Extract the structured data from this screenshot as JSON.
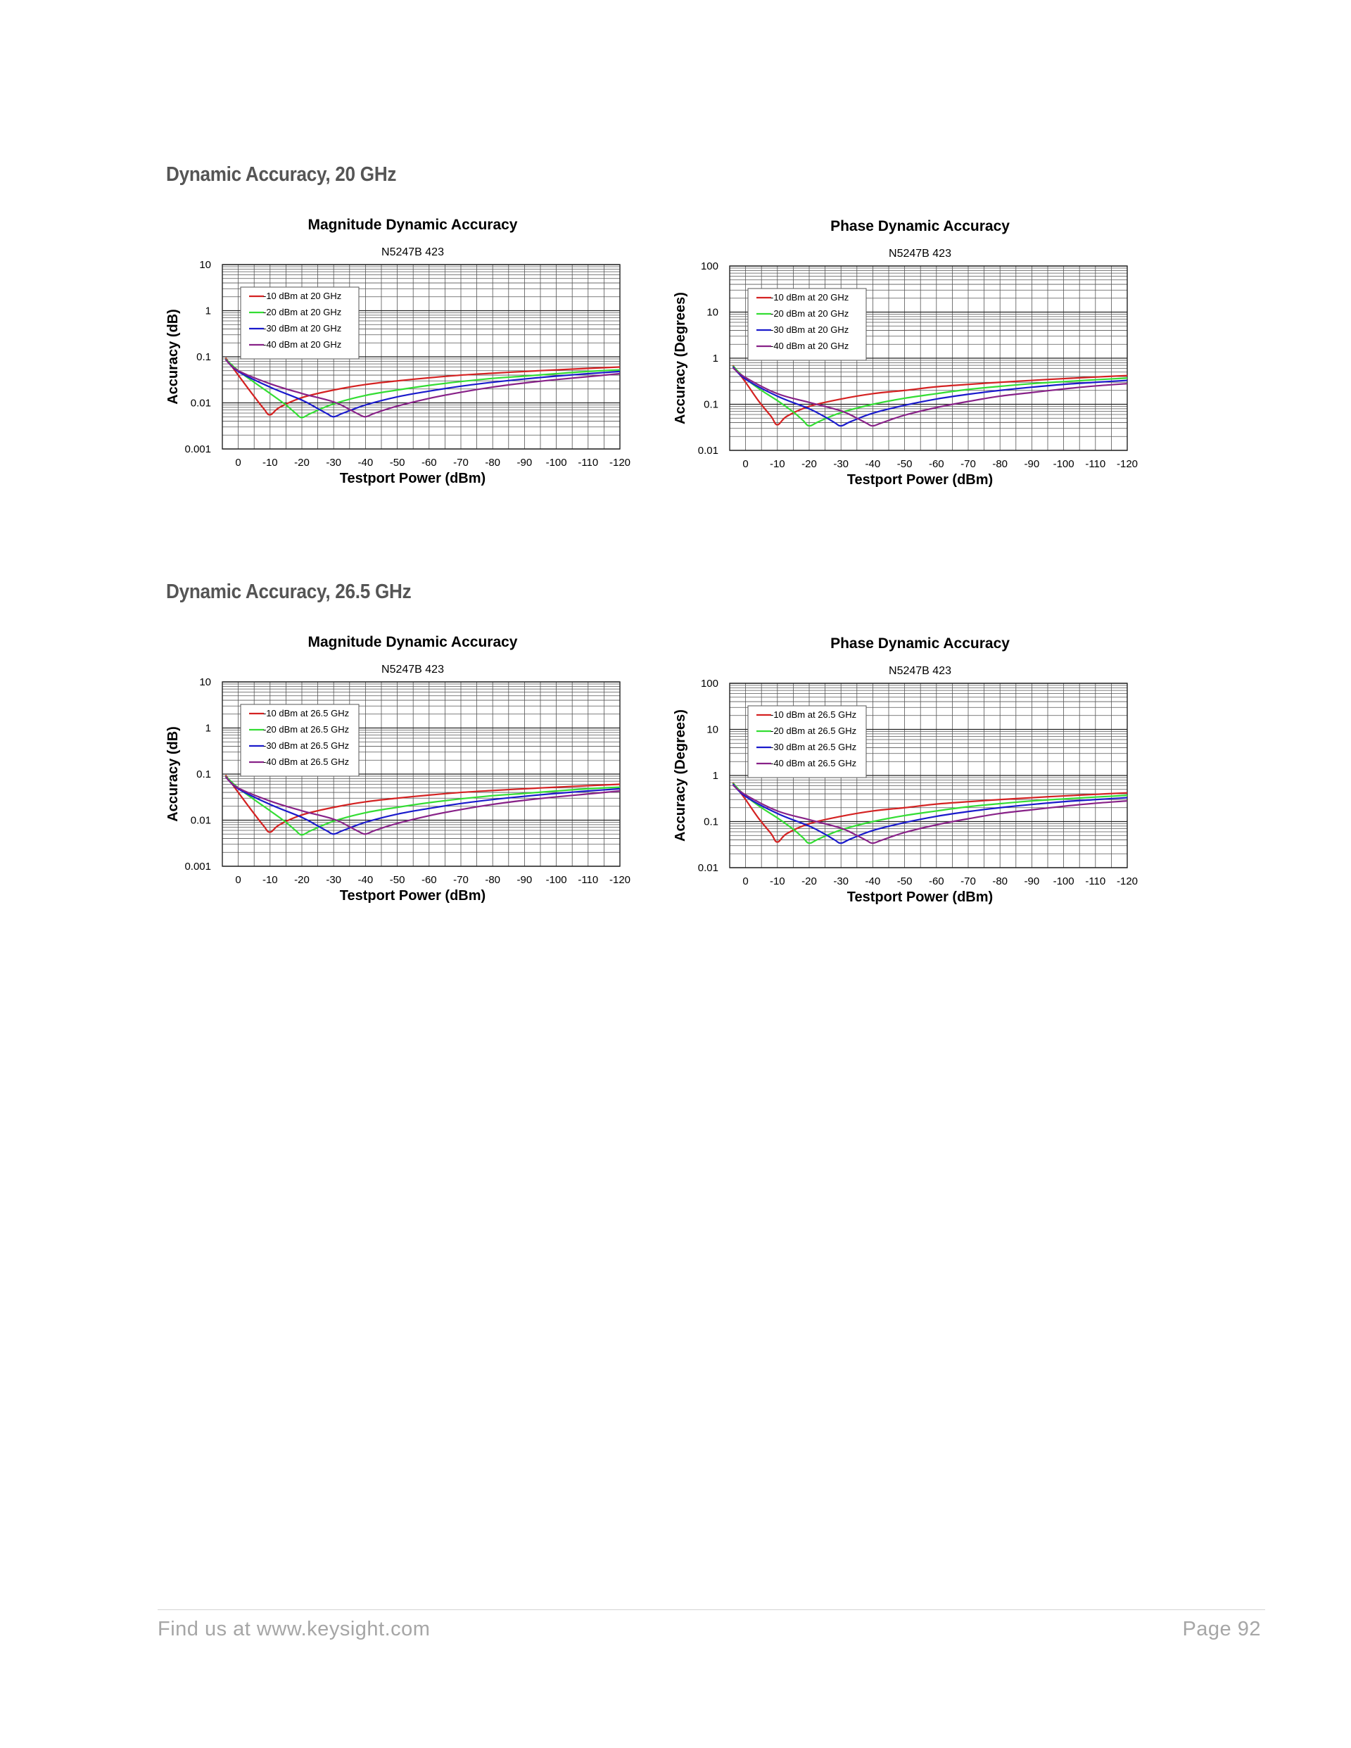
{
  "sections": [
    {
      "title": "Dynamic Accuracy, 20 GHz"
    },
    {
      "title": "Dynamic Accuracy, 26.5 GHz"
    }
  ],
  "footer": {
    "website": "Find us at www.keysight.com",
    "page": "Page 92"
  },
  "chart_data": [
    {
      "type": "line",
      "title": "Magnitude Dynamic Accuracy",
      "subtitle": "N5247B 423",
      "xlabel": "Testport Power (dBm)",
      "ylabel": "Accuracy (dB)",
      "xlim": [
        5,
        -120
      ],
      "ylim": [
        0.001,
        10
      ],
      "yscale": "log",
      "xticks": [
        0,
        -10,
        -20,
        -30,
        -40,
        -50,
        -60,
        -70,
        -80,
        -90,
        -100,
        -110,
        -120
      ],
      "yticks": [
        0.001,
        0.01,
        0.1,
        1,
        10
      ],
      "ytick_labels": [
        "0.001",
        "0.01",
        "0.1",
        "1",
        "10"
      ],
      "grid": true,
      "legend_position": "top-left",
      "series": [
        {
          "name": "-10 dBm at 20 GHz",
          "color": "#d42222",
          "x": [
            4,
            0,
            -4,
            -8,
            -10,
            -13,
            -20,
            -30,
            -40,
            -50,
            -60,
            -70,
            -80,
            -90,
            -100,
            -110,
            -120
          ],
          "y": [
            0.095,
            0.04,
            0.017,
            0.0075,
            0.0055,
            0.008,
            0.013,
            0.019,
            0.025,
            0.03,
            0.035,
            0.04,
            0.044,
            0.048,
            0.052,
            0.056,
            0.06
          ]
        },
        {
          "name": "-20 dBm at 20 GHz",
          "color": "#33dd33",
          "x": [
            4,
            0,
            -5,
            -10,
            -15,
            -18,
            -20,
            -23,
            -30,
            -40,
            -50,
            -60,
            -70,
            -80,
            -90,
            -100,
            -110,
            -120
          ],
          "y": [
            0.09,
            0.05,
            0.028,
            0.016,
            0.009,
            0.006,
            0.0048,
            0.006,
            0.0095,
            0.0145,
            0.019,
            0.024,
            0.029,
            0.034,
            0.038,
            0.043,
            0.048,
            0.052
          ]
        },
        {
          "name": "-30 dBm at 20 GHz",
          "color": "#1a1acc",
          "x": [
            4,
            0,
            -10,
            -20,
            -25,
            -28,
            -30,
            -33,
            -40,
            -50,
            -60,
            -70,
            -80,
            -90,
            -100,
            -110,
            -120
          ],
          "y": [
            0.088,
            0.048,
            0.022,
            0.0115,
            0.0075,
            0.0058,
            0.005,
            0.006,
            0.009,
            0.0135,
            0.018,
            0.023,
            0.028,
            0.033,
            0.038,
            0.043,
            0.048
          ]
        },
        {
          "name": "-40 dBm at 20 GHz",
          "color": "#882288",
          "x": [
            4,
            0,
            -10,
            -20,
            -30,
            -35,
            -38,
            -40,
            -43,
            -50,
            -60,
            -70,
            -80,
            -90,
            -100,
            -110,
            -120
          ],
          "y": [
            0.087,
            0.05,
            0.026,
            0.016,
            0.0105,
            0.0072,
            0.0056,
            0.005,
            0.006,
            0.0085,
            0.0125,
            0.017,
            0.022,
            0.027,
            0.032,
            0.037,
            0.043
          ]
        }
      ]
    },
    {
      "type": "line",
      "title": "Phase Dynamic Accuracy",
      "subtitle": "N5247B 423",
      "xlabel": "Testport Power (dBm)",
      "ylabel": "Accuracy (Degrees)",
      "xlim": [
        5,
        -120
      ],
      "ylim": [
        0.01,
        100
      ],
      "yscale": "log",
      "xticks": [
        0,
        -10,
        -20,
        -30,
        -40,
        -50,
        -60,
        -70,
        -80,
        -90,
        -100,
        -110,
        -120
      ],
      "yticks": [
        0.01,
        0.1,
        1,
        10,
        100
      ],
      "ytick_labels": [
        "0.01",
        "0.1",
        "1",
        "10",
        "100"
      ],
      "grid": true,
      "legend_position": "top-left",
      "series": [
        {
          "name": "-10 dBm at 20 GHz",
          "color": "#d42222",
          "x": [
            4,
            0,
            -4,
            -8,
            -10,
            -13,
            -20,
            -30,
            -40,
            -50,
            -60,
            -70,
            -80,
            -90,
            -100,
            -110,
            -120
          ],
          "y": [
            0.7,
            0.3,
            0.12,
            0.055,
            0.036,
            0.055,
            0.09,
            0.13,
            0.17,
            0.2,
            0.24,
            0.27,
            0.3,
            0.33,
            0.36,
            0.39,
            0.42
          ]
        },
        {
          "name": "-20 dBm at 20 GHz",
          "color": "#33dd33",
          "x": [
            4,
            0,
            -5,
            -10,
            -15,
            -18,
            -20,
            -23,
            -30,
            -40,
            -50,
            -60,
            -70,
            -80,
            -90,
            -100,
            -110,
            -120
          ],
          "y": [
            0.68,
            0.36,
            0.2,
            0.12,
            0.068,
            0.045,
            0.034,
            0.042,
            0.066,
            0.1,
            0.135,
            0.17,
            0.21,
            0.245,
            0.28,
            0.31,
            0.34,
            0.37
          ]
        },
        {
          "name": "-30 dBm at 20 GHz",
          "color": "#1a1acc",
          "x": [
            4,
            0,
            -10,
            -20,
            -25,
            -28,
            -30,
            -33,
            -40,
            -50,
            -60,
            -70,
            -80,
            -90,
            -100,
            -110,
            -120
          ],
          "y": [
            0.65,
            0.35,
            0.15,
            0.08,
            0.053,
            0.04,
            0.034,
            0.042,
            0.064,
            0.095,
            0.13,
            0.165,
            0.2,
            0.235,
            0.27,
            0.3,
            0.33
          ]
        },
        {
          "name": "-40 dBm at 20 GHz",
          "color": "#882288",
          "x": [
            4,
            0,
            -10,
            -20,
            -30,
            -35,
            -38,
            -40,
            -43,
            -50,
            -60,
            -70,
            -80,
            -90,
            -100,
            -110,
            -120
          ],
          "y": [
            0.62,
            0.38,
            0.17,
            0.11,
            0.072,
            0.05,
            0.039,
            0.034,
            0.04,
            0.058,
            0.085,
            0.115,
            0.15,
            0.18,
            0.215,
            0.25,
            0.28
          ]
        }
      ]
    },
    {
      "type": "line",
      "title": "Magnitude Dynamic Accuracy",
      "subtitle": "N5247B 423",
      "xlabel": "Testport Power (dBm)",
      "ylabel": "Accuracy (dB)",
      "xlim": [
        5,
        -120
      ],
      "ylim": [
        0.001,
        10
      ],
      "yscale": "log",
      "xticks": [
        0,
        -10,
        -20,
        -30,
        -40,
        -50,
        -60,
        -70,
        -80,
        -90,
        -100,
        -110,
        -120
      ],
      "yticks": [
        0.001,
        0.01,
        0.1,
        1,
        10
      ],
      "ytick_labels": [
        "0.001",
        "0.01",
        "0.1",
        "1",
        "10"
      ],
      "grid": true,
      "legend_position": "top-left",
      "series": [
        {
          "name": "-10 dBm at 26.5 GHz",
          "color": "#d42222",
          "x": [
            4,
            0,
            -4,
            -8,
            -10,
            -13,
            -20,
            -30,
            -40,
            -50,
            -60,
            -70,
            -80,
            -90,
            -100,
            -110,
            -120
          ],
          "y": [
            0.095,
            0.04,
            0.017,
            0.0075,
            0.0055,
            0.008,
            0.013,
            0.019,
            0.025,
            0.03,
            0.035,
            0.04,
            0.044,
            0.048,
            0.052,
            0.056,
            0.06
          ]
        },
        {
          "name": "-20 dBm at 26.5 GHz",
          "color": "#33dd33",
          "x": [
            4,
            0,
            -5,
            -10,
            -15,
            -18,
            -20,
            -23,
            -30,
            -40,
            -50,
            -60,
            -70,
            -80,
            -90,
            -100,
            -110,
            -120
          ],
          "y": [
            0.09,
            0.05,
            0.028,
            0.016,
            0.009,
            0.006,
            0.0048,
            0.006,
            0.0095,
            0.0145,
            0.019,
            0.024,
            0.029,
            0.034,
            0.038,
            0.043,
            0.048,
            0.052
          ]
        },
        {
          "name": "-30 dBm at 26.5 GHz",
          "color": "#1a1acc",
          "x": [
            4,
            0,
            -10,
            -20,
            -25,
            -28,
            -30,
            -33,
            -40,
            -50,
            -60,
            -70,
            -80,
            -90,
            -100,
            -110,
            -120
          ],
          "y": [
            0.088,
            0.048,
            0.022,
            0.0115,
            0.0075,
            0.0058,
            0.005,
            0.006,
            0.009,
            0.0135,
            0.018,
            0.023,
            0.028,
            0.033,
            0.038,
            0.043,
            0.048
          ]
        },
        {
          "name": "-40 dBm at 26.5 GHz",
          "color": "#882288",
          "x": [
            4,
            0,
            -10,
            -20,
            -30,
            -35,
            -38,
            -40,
            -43,
            -50,
            -60,
            -70,
            -80,
            -90,
            -100,
            -110,
            -120
          ],
          "y": [
            0.087,
            0.05,
            0.026,
            0.016,
            0.0105,
            0.0072,
            0.0056,
            0.005,
            0.006,
            0.0085,
            0.0125,
            0.017,
            0.022,
            0.027,
            0.032,
            0.037,
            0.043
          ]
        }
      ]
    },
    {
      "type": "line",
      "title": "Phase Dynamic Accuracy",
      "subtitle": "N5247B 423",
      "xlabel": "Testport Power (dBm)",
      "ylabel": "Accuracy (Degrees)",
      "xlim": [
        5,
        -120
      ],
      "ylim": [
        0.01,
        100
      ],
      "yscale": "log",
      "xticks": [
        0,
        -10,
        -20,
        -30,
        -40,
        -50,
        -60,
        -70,
        -80,
        -90,
        -100,
        -110,
        -120
      ],
      "yticks": [
        0.01,
        0.1,
        1,
        10,
        100
      ],
      "ytick_labels": [
        "0.01",
        "0.1",
        "1",
        "10",
        "100"
      ],
      "grid": true,
      "legend_position": "top-left",
      "series": [
        {
          "name": "-10 dBm at 26.5 GHz",
          "color": "#d42222",
          "x": [
            4,
            0,
            -4,
            -8,
            -10,
            -13,
            -20,
            -30,
            -40,
            -50,
            -60,
            -70,
            -80,
            -90,
            -100,
            -110,
            -120
          ],
          "y": [
            0.7,
            0.3,
            0.12,
            0.055,
            0.036,
            0.055,
            0.09,
            0.13,
            0.17,
            0.2,
            0.24,
            0.27,
            0.3,
            0.33,
            0.36,
            0.39,
            0.42
          ]
        },
        {
          "name": "-20 dBm at 26.5 GHz",
          "color": "#33dd33",
          "x": [
            4,
            0,
            -5,
            -10,
            -15,
            -18,
            -20,
            -23,
            -30,
            -40,
            -50,
            -60,
            -70,
            -80,
            -90,
            -100,
            -110,
            -120
          ],
          "y": [
            0.68,
            0.36,
            0.2,
            0.12,
            0.068,
            0.045,
            0.034,
            0.042,
            0.066,
            0.1,
            0.135,
            0.17,
            0.21,
            0.245,
            0.28,
            0.31,
            0.34,
            0.37
          ]
        },
        {
          "name": "-30 dBm at 26.5 GHz",
          "color": "#1a1acc",
          "x": [
            4,
            0,
            -10,
            -20,
            -25,
            -28,
            -30,
            -33,
            -40,
            -50,
            -60,
            -70,
            -80,
            -90,
            -100,
            -110,
            -120
          ],
          "y": [
            0.65,
            0.35,
            0.15,
            0.08,
            0.053,
            0.04,
            0.034,
            0.042,
            0.064,
            0.095,
            0.13,
            0.165,
            0.2,
            0.235,
            0.27,
            0.3,
            0.33
          ]
        },
        {
          "name": "-40 dBm at 26.5 GHz",
          "color": "#882288",
          "x": [
            4,
            0,
            -10,
            -20,
            -30,
            -35,
            -38,
            -40,
            -43,
            -50,
            -60,
            -70,
            -80,
            -90,
            -100,
            -110,
            -120
          ],
          "y": [
            0.62,
            0.38,
            0.17,
            0.11,
            0.072,
            0.05,
            0.039,
            0.034,
            0.04,
            0.058,
            0.085,
            0.115,
            0.15,
            0.18,
            0.215,
            0.25,
            0.28
          ]
        }
      ]
    }
  ]
}
